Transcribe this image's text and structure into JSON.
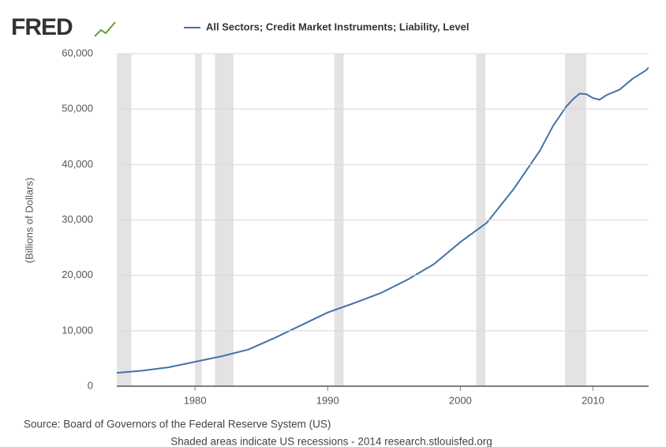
{
  "logo": "FRED",
  "chart_data": {
    "type": "line",
    "y_label": "(Billions of Dollars)",
    "source": "Source: Board of Governors of the Federal Reserve System (US)",
    "note": "Shaded areas indicate US recessions - 2014 research.stlouisfed.org",
    "x": [
      1974.1,
      1976,
      1978,
      1980,
      1982,
      1984,
      1986,
      1988,
      1990,
      1992,
      1994,
      1996,
      1998,
      2000,
      2002,
      2004,
      2006,
      2007,
      2008,
      2008.5,
      2009,
      2009.5,
      2010,
      2010.5,
      2011,
      2012,
      2013,
      2014,
      2014.2
    ],
    "series": [
      {
        "name": "All Sectors; Credit Market Instruments; Liability, Level",
        "color": "#4572a7",
        "values": [
          2400,
          2800,
          3400,
          4400,
          5400,
          6600,
          8700,
          11000,
          13300,
          15000,
          16800,
          19200,
          22000,
          26000,
          29500,
          35500,
          42500,
          47000,
          50500,
          51800,
          52800,
          52700,
          52000,
          51700,
          52500,
          53500,
          55500,
          57000,
          57500
        ]
      }
    ],
    "recessions": [
      [
        1973.9,
        1975.2
      ],
      [
        1980.0,
        1980.5
      ],
      [
        1981.5,
        1982.9
      ],
      [
        1990.5,
        1991.2
      ],
      [
        2001.2,
        2001.9
      ],
      [
        2007.9,
        2009.5
      ]
    ],
    "recession_color": "#e3e3e3",
    "xlim": [
      1974.1,
      2014.2
    ],
    "xticks": [
      1980,
      1990,
      2000,
      2010
    ],
    "ylim": [
      0,
      60000
    ],
    "yticks": [
      0,
      {
        "value": 10000,
        "label": "10,000"
      },
      {
        "value": 20000,
        "label": "20,000"
      },
      {
        "value": 30000,
        "label": "30,000"
      },
      {
        "value": 40000,
        "label": "40,000"
      },
      {
        "value": 50000,
        "label": "50,000"
      },
      {
        "value": 60000,
        "label": "60,000"
      }
    ],
    "grid": true
  }
}
